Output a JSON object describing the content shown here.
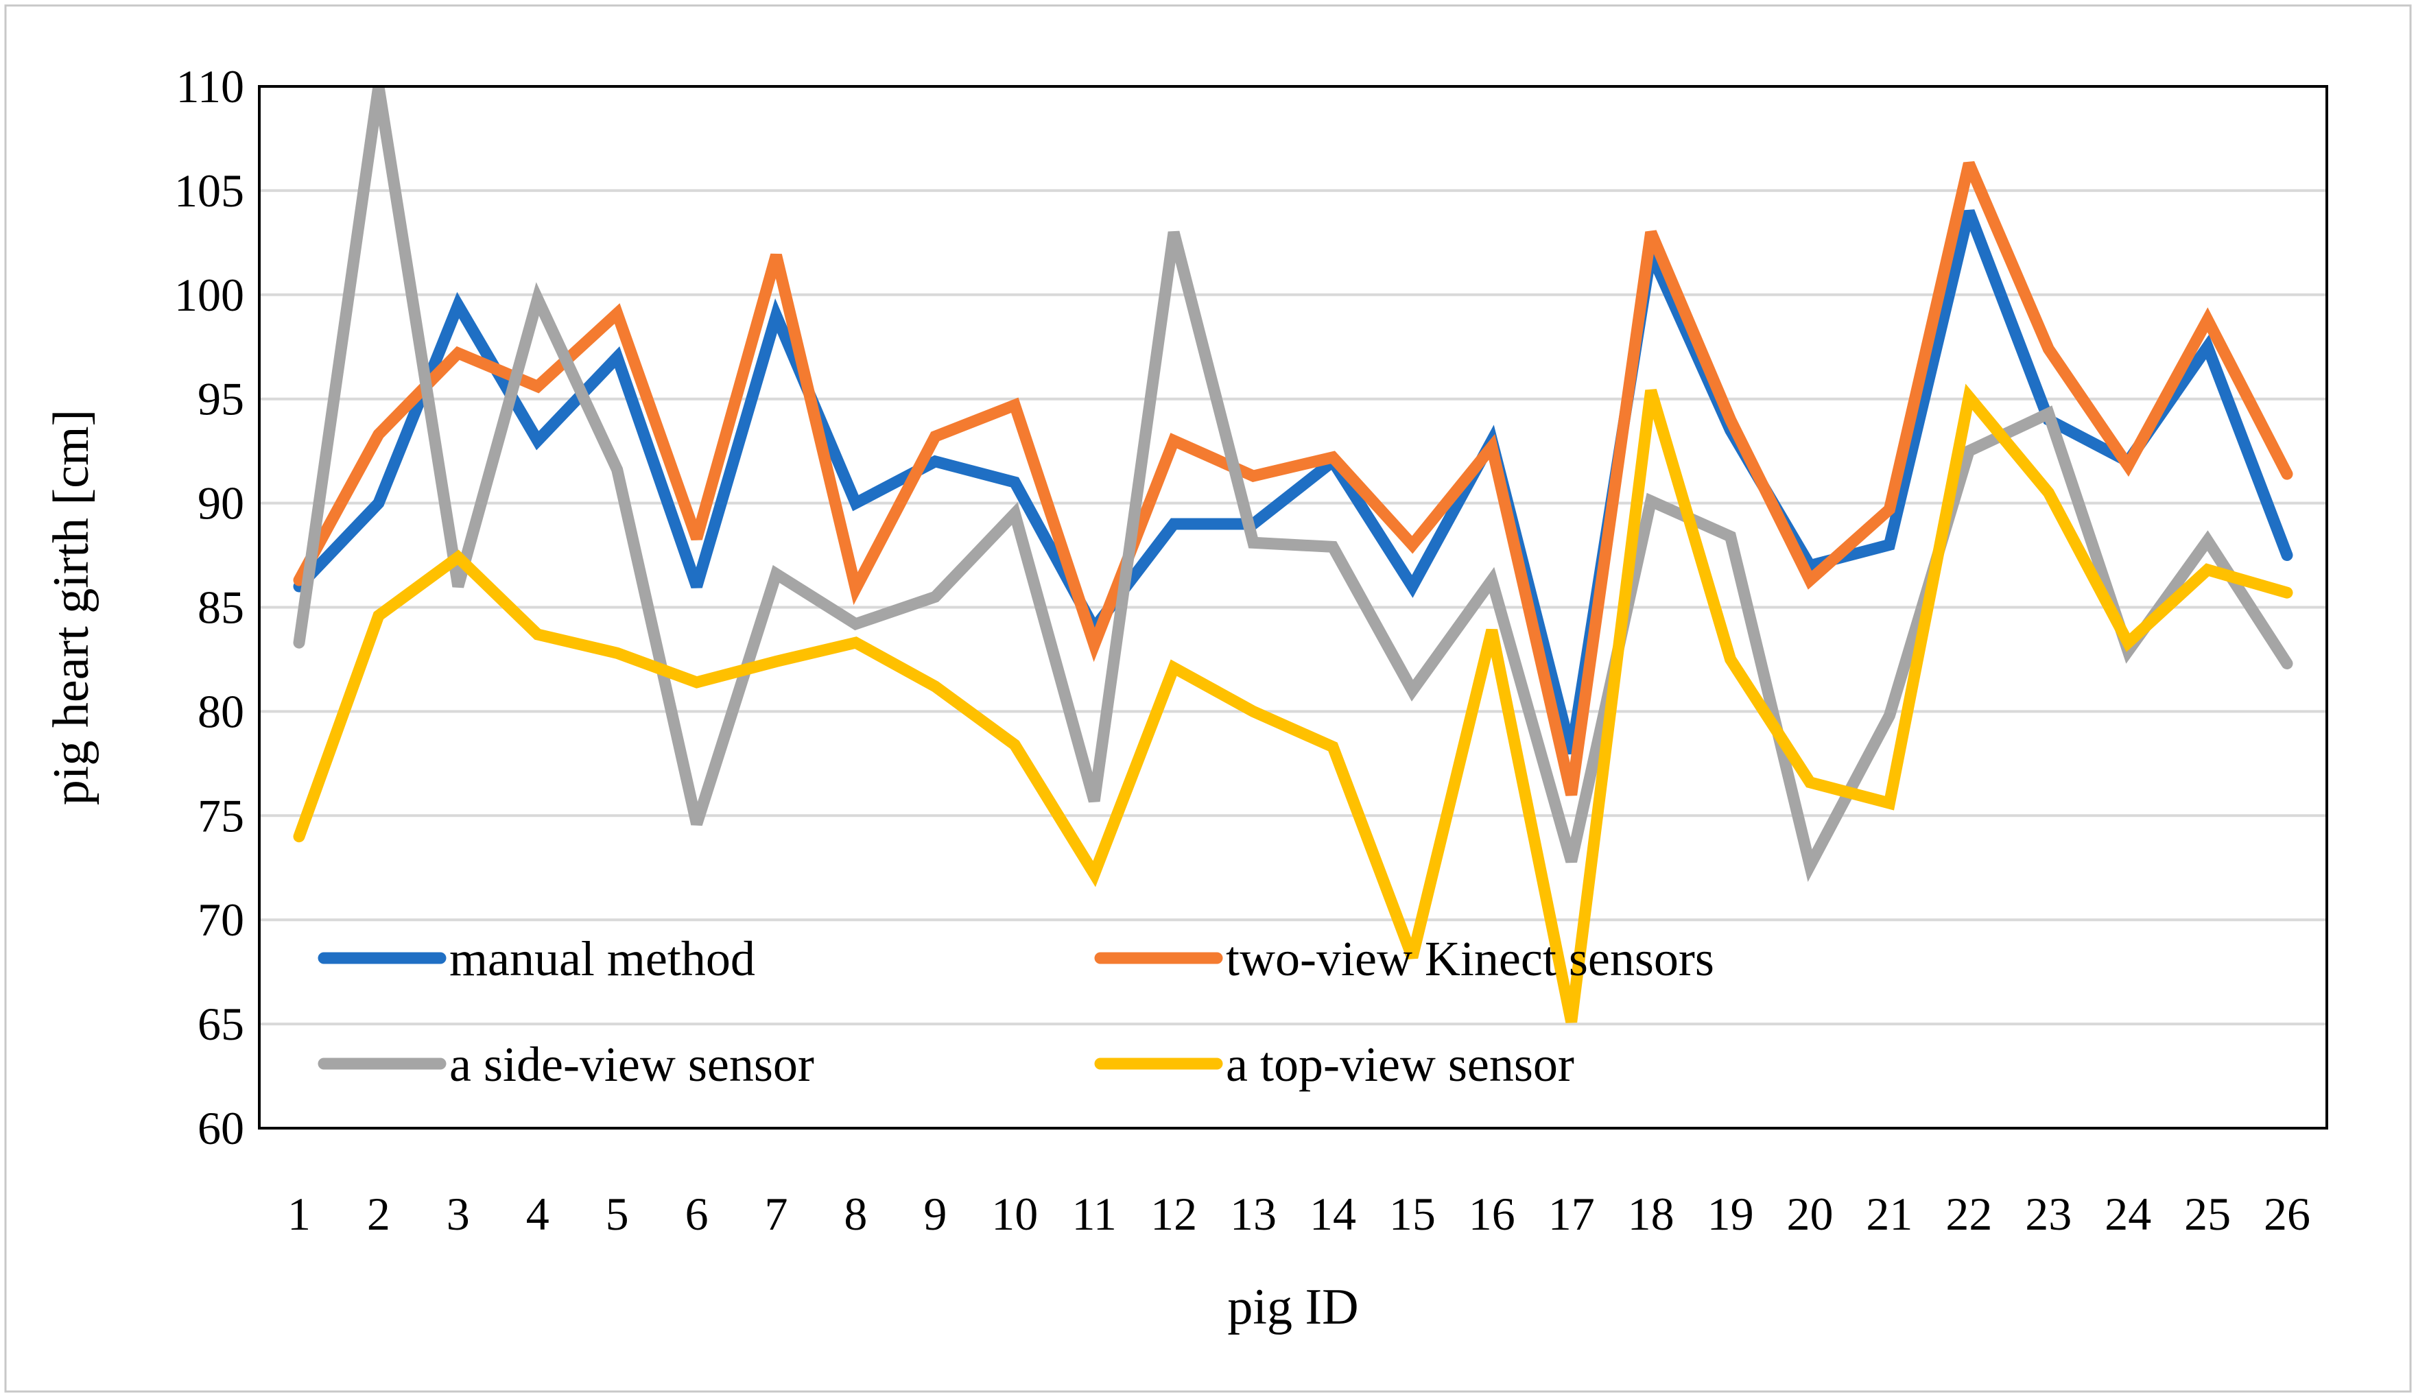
{
  "chart_data": {
    "type": "line",
    "title": "",
    "xlabel": "pig ID",
    "ylabel": "pig heart girth [cm]",
    "ylim": [
      60,
      110
    ],
    "yticks": [
      60,
      65,
      70,
      75,
      80,
      85,
      90,
      95,
      100,
      105,
      110
    ],
    "grid": true,
    "legend": "bottom-left inside plot, 2 columns",
    "categories": [
      "1",
      "2",
      "3",
      "4",
      "5",
      "6",
      "7",
      "8",
      "9",
      "10",
      "11",
      "12",
      "13",
      "14",
      "15",
      "16",
      "17",
      "18",
      "19",
      "20",
      "21",
      "22",
      "23",
      "24",
      "25",
      "26"
    ],
    "series": [
      {
        "name": "manual method",
        "color": "#1F6FC4",
        "values": [
          86,
          90,
          99.5,
          93,
          97,
          86,
          99,
          90,
          92,
          91,
          84,
          89,
          89,
          92,
          86,
          93,
          78,
          102,
          93.5,
          87,
          88,
          104,
          94,
          92,
          97.5,
          87.5
        ]
      },
      {
        "name": "two-view Kinect sensors",
        "color": "#F47B30",
        "values": [
          86.3,
          93.3,
          97.2,
          95.6,
          99.1,
          88.3,
          101.9,
          85.9,
          93.2,
          94.7,
          83.2,
          93,
          91.3,
          92.2,
          88,
          92.7,
          76,
          103,
          94,
          86.3,
          89.7,
          106.3,
          97.4,
          91.8,
          98.8,
          91.4
        ]
      },
      {
        "name": "a side-view sensor",
        "color": "#A5A5A5",
        "values": [
          83.3,
          110,
          86,
          99.8,
          91.6,
          74.6,
          86.6,
          84.2,
          85.5,
          89.5,
          75.7,
          103,
          88.1,
          87.9,
          81,
          86.3,
          72.8,
          90.1,
          88.4,
          72.6,
          79.8,
          92.5,
          94.3,
          82.9,
          88.2,
          82.3
        ]
      },
      {
        "name": "a top-view sensor",
        "color": "#FFC000",
        "values": [
          74,
          84.6,
          87.4,
          83.7,
          82.8,
          81.4,
          82.4,
          83.3,
          81.2,
          78.4,
          72.2,
          82.1,
          80,
          78.3,
          68.2,
          83.9,
          65.1,
          95.4,
          82.5,
          76.6,
          75.6,
          95.1,
          90.5,
          83.3,
          86.8,
          85.7
        ]
      }
    ]
  }
}
